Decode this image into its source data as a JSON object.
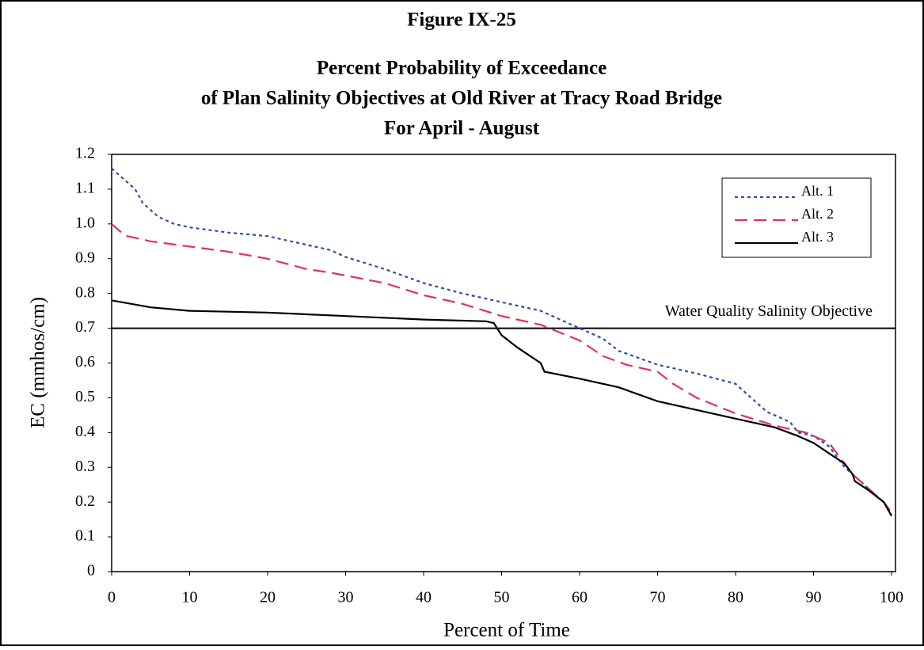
{
  "chart_data": {
    "type": "line",
    "title": "Figure IX-25",
    "subtitle": [
      "Percent Probability of Exceedance",
      "of Plan Salinity Objectives at Old River at Tracy Road Bridge",
      "For April - August"
    ],
    "x_label": "Percent of Time",
    "y_label": "EC (mmhos/cm)",
    "xlim": [
      0,
      100
    ],
    "xticks": [
      0,
      10,
      20,
      30,
      40,
      50,
      60,
      70,
      80,
      90,
      100
    ],
    "ylim": [
      0,
      1.2
    ],
    "yticks": [
      0,
      0.1,
      0.2,
      0.3,
      0.4,
      0.5,
      0.6,
      0.7,
      0.8,
      0.9,
      {
        "value": 1,
        "label": "1.0"
      },
      1.1,
      1.2
    ],
    "grid": false,
    "legend": "upper right",
    "reference_line": {
      "value": 0.7,
      "label": "Water Quality Salinity Objective",
      "color": "#000000"
    },
    "series": [
      {
        "name": "Alt. 1",
        "color": "#2a4fa8",
        "line_style": "dotted",
        "x": [
          0,
          1,
          2,
          3,
          4,
          5,
          6,
          8,
          10,
          15,
          20,
          25,
          28,
          30,
          35,
          40,
          45,
          50,
          55,
          58,
          60,
          63,
          65,
          70,
          75,
          80,
          82,
          84,
          87,
          88,
          90,
          92,
          93,
          94,
          95,
          97,
          99,
          100
        ],
        "values": [
          1.16,
          1.14,
          1.12,
          1.1,
          1.06,
          1.04,
          1.02,
          1.0,
          0.99,
          0.975,
          0.965,
          0.94,
          0.925,
          0.905,
          0.87,
          0.83,
          0.8,
          0.775,
          0.75,
          0.72,
          0.7,
          0.67,
          0.635,
          0.595,
          0.57,
          0.54,
          0.5,
          0.46,
          0.43,
          0.4,
          0.39,
          0.36,
          0.33,
          0.3,
          0.28,
          0.24,
          0.2,
          0.165
        ]
      },
      {
        "name": "Alt. 2",
        "color": "#e0306a",
        "line_style": "dashed",
        "x": [
          0,
          1,
          2,
          5,
          10,
          15,
          20,
          25,
          28,
          35,
          40,
          45,
          50,
          55,
          60,
          63,
          66,
          70,
          72,
          75,
          80,
          85,
          89,
          92,
          95,
          97,
          99,
          100
        ],
        "values": [
          1.0,
          0.98,
          0.965,
          0.95,
          0.935,
          0.92,
          0.9,
          0.87,
          0.86,
          0.83,
          0.795,
          0.77,
          0.735,
          0.71,
          0.665,
          0.62,
          0.595,
          0.575,
          0.54,
          0.5,
          0.455,
          0.42,
          0.4,
          0.37,
          0.28,
          0.24,
          0.2,
          0.17
        ]
      },
      {
        "name": "Alt. 3",
        "color": "#000000",
        "line_style": "solid",
        "x": [
          0,
          5,
          10,
          20,
          30,
          40,
          48,
          49,
          50,
          52,
          54,
          55,
          55.5,
          60,
          65,
          70,
          75,
          80,
          85,
          88,
          90,
          92,
          94,
          95,
          95.3,
          97,
          99,
          100
        ],
        "values": [
          0.78,
          0.76,
          0.75,
          0.745,
          0.735,
          0.725,
          0.72,
          0.715,
          0.68,
          0.645,
          0.615,
          0.6,
          0.575,
          0.555,
          0.53,
          0.49,
          0.465,
          0.44,
          0.415,
          0.39,
          0.37,
          0.34,
          0.31,
          0.28,
          0.26,
          0.235,
          0.2,
          0.16
        ]
      }
    ]
  }
}
